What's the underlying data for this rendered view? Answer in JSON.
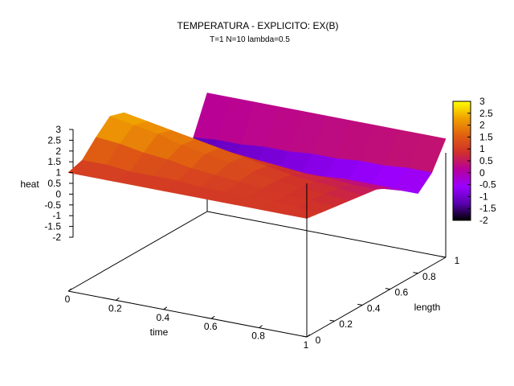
{
  "chart_data": {
    "type": "surface",
    "title": "TEMPERATURA - EXPLICITO: EX(B)",
    "subtitle": "T=1 N=10 lambda=0.5",
    "xlabel": "time",
    "ylabel": "length",
    "zlabel": "heat",
    "xlim": [
      0,
      1
    ],
    "ylim": [
      0,
      1
    ],
    "zlim": [
      -2,
      3
    ],
    "x_ticks": [
      "0",
      "0.2",
      "0.4",
      "0.6",
      "0.8",
      "1"
    ],
    "y_ticks": [
      "0",
      "0.2",
      "0.4",
      "0.6",
      "0.8",
      "1"
    ],
    "z_ticks": [
      "3",
      "2.5",
      "2",
      "1.5",
      "1",
      "0.5",
      "0",
      "-0.5",
      "-1",
      "-1.5",
      "-2"
    ],
    "colorbar": {
      "range": [
        -2,
        3
      ],
      "ticks": [
        "3",
        "2.5",
        "2",
        "1.5",
        "1",
        "0.5",
        "0",
        "-0.5",
        "-1",
        "-1.5",
        "-2"
      ],
      "palette": [
        "#000000",
        "#5a00b0",
        "#9a00ff",
        "#b8009a",
        "#d0302a",
        "#e06010",
        "#f0a000",
        "#ffff00"
      ]
    },
    "x": [
      0,
      0.1,
      0.2,
      0.3,
      0.4,
      0.5,
      0.6,
      0.7,
      0.8,
      0.9,
      1
    ],
    "y": [
      0,
      0.1,
      0.2,
      0.3,
      0.4,
      0.5,
      0.6,
      0.7,
      0.8,
      0.9,
      1
    ],
    "z": [
      [
        1.0,
        1.2,
        1.9,
        2.5,
        2.3,
        1.3,
        0.0,
        -1.2,
        -1.7,
        -0.7,
        1.0
      ],
      [
        1.0,
        1.2,
        1.8,
        2.3,
        2.1,
        1.2,
        0.0,
        -1.1,
        -1.6,
        -0.6,
        1.0
      ],
      [
        1.0,
        1.1,
        1.6,
        2.1,
        1.9,
        1.1,
        0.0,
        -1.0,
        -1.5,
        -0.6,
        1.0
      ],
      [
        1.0,
        1.1,
        1.5,
        1.8,
        1.7,
        1.0,
        0.0,
        -0.9,
        -1.4,
        -0.5,
        1.0
      ],
      [
        1.0,
        1.1,
        1.3,
        1.6,
        1.5,
        0.9,
        0.0,
        -0.8,
        -1.3,
        -0.5,
        1.0
      ],
      [
        1.0,
        1.0,
        1.2,
        1.4,
        1.3,
        0.8,
        0.1,
        -0.7,
        -1.2,
        -0.4,
        1.0
      ],
      [
        1.0,
        1.0,
        1.1,
        1.2,
        1.1,
        0.7,
        0.1,
        -0.6,
        -1.1,
        -0.4,
        1.0
      ],
      [
        1.0,
        1.0,
        1.0,
        1.0,
        0.9,
        0.6,
        0.1,
        -0.5,
        -1.0,
        -0.3,
        1.0
      ],
      [
        1.0,
        1.0,
        0.9,
        0.9,
        0.8,
        0.6,
        0.2,
        -0.4,
        -0.9,
        -0.3,
        1.0
      ],
      [
        1.0,
        0.9,
        0.9,
        0.8,
        0.7,
        0.5,
        0.2,
        -0.4,
        -0.8,
        -0.2,
        1.0
      ],
      [
        1.0,
        0.9,
        0.8,
        0.7,
        0.6,
        0.5,
        0.2,
        -0.3,
        -0.8,
        -0.2,
        1.0
      ]
    ]
  }
}
